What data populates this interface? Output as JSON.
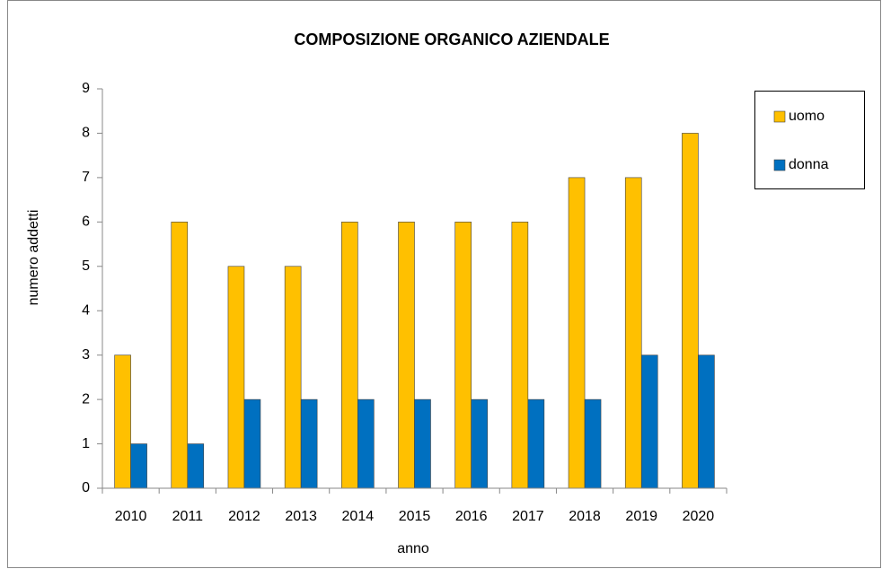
{
  "chart_data": {
    "type": "bar",
    "title": "COMPOSIZIONE ORGANICO AZIENDALE",
    "x_label": "anno",
    "y_label": "numero addetti",
    "categories": [
      "2010",
      "2011",
      "2012",
      "2013",
      "2014",
      "2015",
      "2016",
      "2017",
      "2018",
      "2019",
      "2020"
    ],
    "series": [
      {
        "name": "uomo",
        "color": "#ffc000",
        "values": [
          3,
          6,
          5,
          5,
          6,
          6,
          6,
          6,
          7,
          7,
          8
        ]
      },
      {
        "name": "donna",
        "color": "#0070c0",
        "values": [
          1,
          1,
          2,
          2,
          2,
          2,
          2,
          2,
          2,
          3,
          3
        ]
      }
    ],
    "ylim": [
      0,
      9
    ],
    "yticks": [
      0,
      1,
      2,
      3,
      4,
      5,
      6,
      7,
      8,
      9
    ],
    "grid": false,
    "legend": "right"
  }
}
